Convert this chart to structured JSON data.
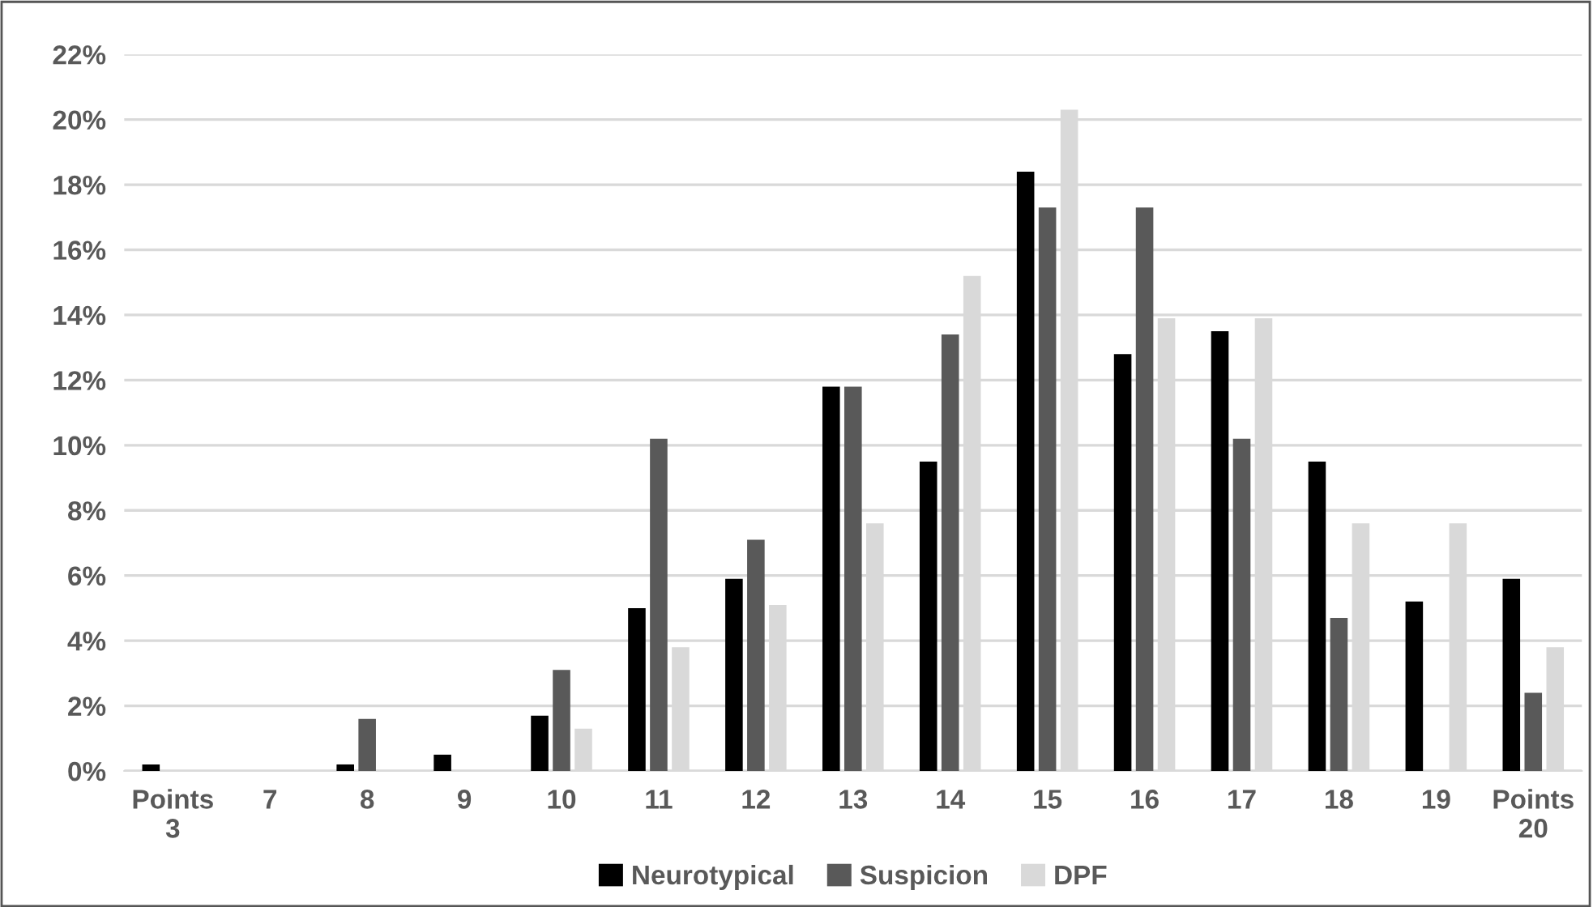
{
  "chart_data": {
    "type": "bar",
    "categories": [
      "Points\n3",
      "7",
      "8",
      "9",
      "10",
      "11",
      "12",
      "13",
      "14",
      "15",
      "16",
      "17",
      "18",
      "19",
      "Points\n20"
    ],
    "series": [
      {
        "name": "Neurotypical",
        "color": "#000000",
        "values": [
          0.2,
          0,
          0.2,
          0.5,
          1.7,
          5.0,
          5.9,
          11.8,
          9.5,
          18.4,
          12.8,
          13.5,
          9.5,
          5.2,
          5.9
        ]
      },
      {
        "name": "Suspicion",
        "color": "#595959",
        "values": [
          0,
          0,
          1.6,
          0,
          3.1,
          10.2,
          7.1,
          11.8,
          13.4,
          17.3,
          17.3,
          10.2,
          4.7,
          0,
          2.4
        ]
      },
      {
        "name": "DPF",
        "color": "#d9d9d9",
        "values": [
          0,
          0,
          0,
          0,
          1.3,
          3.8,
          5.1,
          7.6,
          15.2,
          20.3,
          13.9,
          13.9,
          7.6,
          7.6,
          3.8
        ]
      }
    ],
    "ylim": [
      0,
      22
    ],
    "yticks": [
      {
        "value": 0,
        "label": "0%"
      },
      {
        "value": 2,
        "label": "2%"
      },
      {
        "value": 4,
        "label": "4%"
      },
      {
        "value": 6,
        "label": "6%"
      },
      {
        "value": 8,
        "label": "8%"
      },
      {
        "value": 10,
        "label": "10%"
      },
      {
        "value": 12,
        "label": "12%"
      },
      {
        "value": 14,
        "label": "14%"
      },
      {
        "value": 16,
        "label": "16%"
      },
      {
        "value": 18,
        "label": "18%"
      },
      {
        "value": 20,
        "label": "20%"
      },
      {
        "value": 22,
        "label": "22%"
      }
    ],
    "grid": "y",
    "legend": "bottom"
  }
}
